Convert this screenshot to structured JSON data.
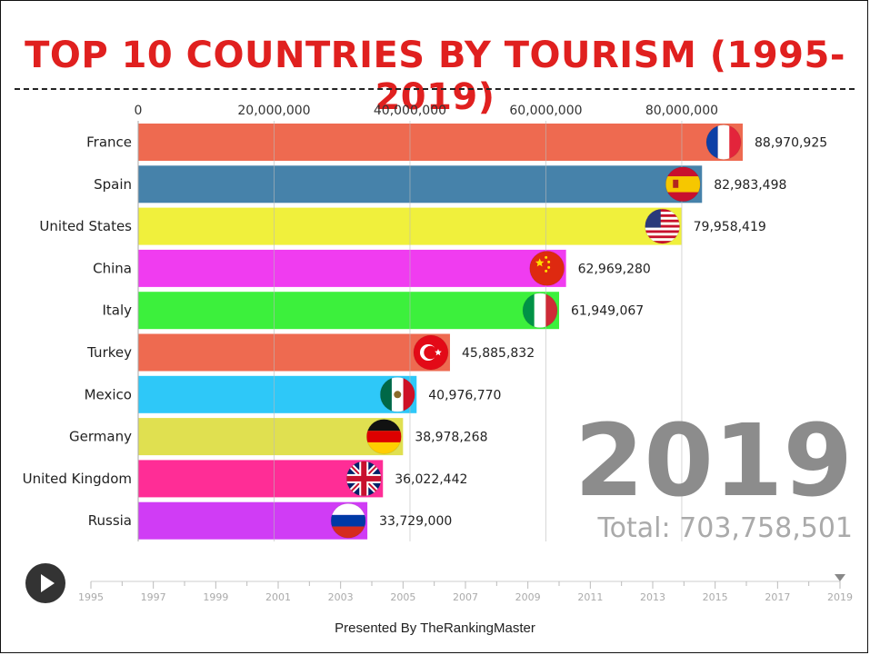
{
  "title": "TOP 10 COUNTRIES BY TOURISM (1995-2019)",
  "year": "2019",
  "total_label": "Total: 703,758,501",
  "footer": "Presented By TheRankingMaster",
  "timeline": {
    "ticks": [
      "1995",
      "1997",
      "1999",
      "2001",
      "2003",
      "2005",
      "2007",
      "2009",
      "2011",
      "2013",
      "2015",
      "2017",
      "2019"
    ],
    "current": "2019"
  },
  "chart_data": {
    "type": "bar",
    "orientation": "horizontal",
    "title": "TOP 10 COUNTRIES BY TOURISM (1995-2019)",
    "categories": [
      "France",
      "Spain",
      "United States",
      "China",
      "Italy",
      "Turkey",
      "Mexico",
      "Germany",
      "United Kingdom",
      "Russia"
    ],
    "values": [
      88970925,
      82983498,
      79958419,
      62969280,
      61949067,
      45885832,
      40976770,
      38978268,
      36022442,
      33729000
    ],
    "value_labels": [
      "88,970,925",
      "82,983,498",
      "79,958,419",
      "62,969,280",
      "61,949,067",
      "45,885,832",
      "40,976,770",
      "38,978,268",
      "36,022,442",
      "33,729,000"
    ],
    "colors": [
      "#ee6a50",
      "#4682aa",
      "#f0f03c",
      "#f03cf0",
      "#3cf03c",
      "#ee6a50",
      "#2ec8f8",
      "#e0e050",
      "#ff2d96",
      "#d03cf5"
    ],
    "flags": [
      "france-flag-icon",
      "spain-flag-icon",
      "usa-flag-icon",
      "china-flag-icon",
      "italy-flag-icon",
      "turkey-flag-icon",
      "mexico-flag-icon",
      "germany-flag-icon",
      "uk-flag-icon",
      "russia-flag-icon"
    ],
    "x_ticks": [
      0,
      20000000,
      40000000,
      60000000,
      80000000
    ],
    "x_tick_labels": [
      "0",
      "20,000,000",
      "40,000,000",
      "60,000,000",
      "80,000,000"
    ],
    "xlim": [
      0,
      88970925
    ],
    "grid": true
  }
}
